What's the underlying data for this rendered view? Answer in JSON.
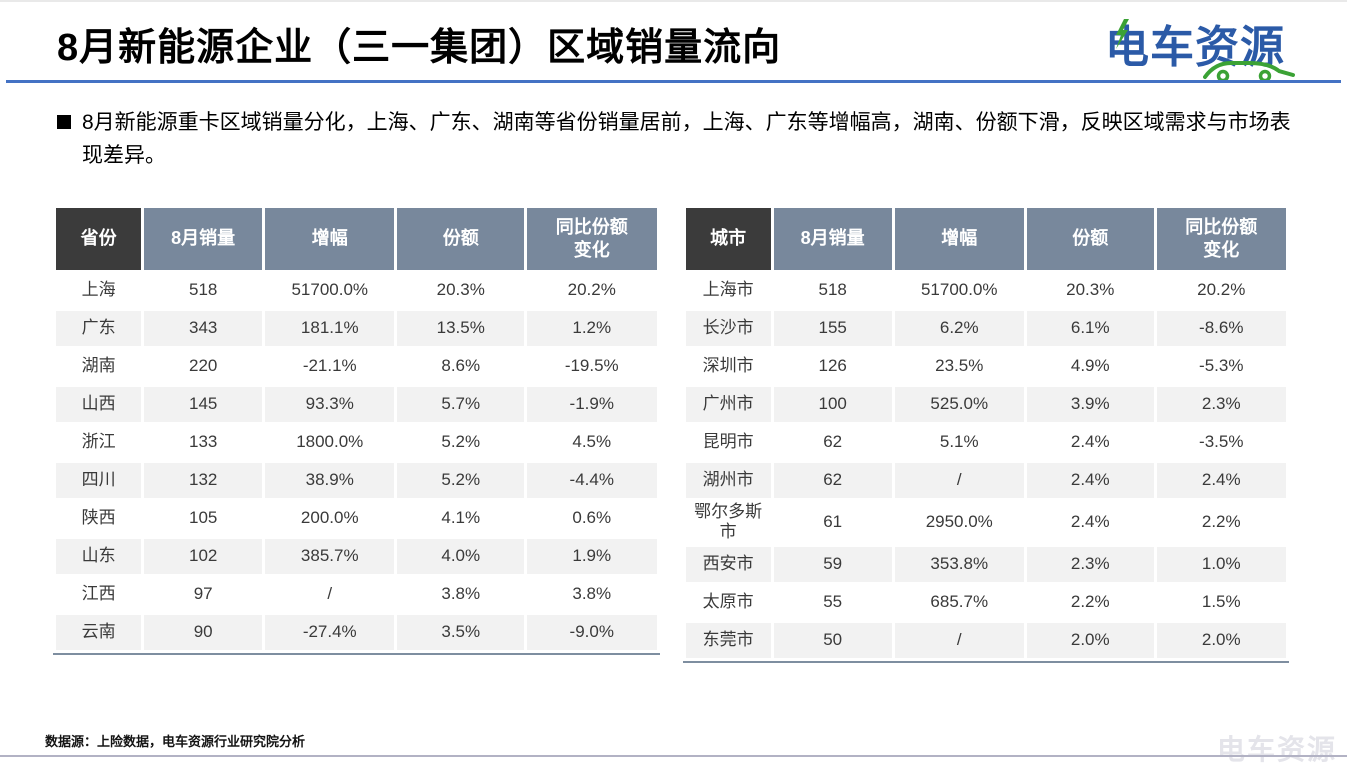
{
  "header": {
    "title": "8月新能源企业（三一集团）区域销量流向",
    "logo_text": "电车资源"
  },
  "summary": {
    "text": "8月新能源重卡区域销量分化，上海、广东、湖南等省份销量居前，上海、广东等增幅高，湖南、份额下滑，反映区域需求与市场表现差异。"
  },
  "tables": [
    {
      "name": "province-sales",
      "columns": [
        "省份",
        "8月销量",
        "增幅",
        "份额",
        "同比份额变化"
      ],
      "rows": [
        [
          "上海",
          "518",
          "51700.0%",
          "20.3%",
          "20.2%"
        ],
        [
          "广东",
          "343",
          "181.1%",
          "13.5%",
          "1.2%"
        ],
        [
          "湖南",
          "220",
          "-21.1%",
          "8.6%",
          "-19.5%"
        ],
        [
          "山西",
          "145",
          "93.3%",
          "5.7%",
          "-1.9%"
        ],
        [
          "浙江",
          "133",
          "1800.0%",
          "5.2%",
          "4.5%"
        ],
        [
          "四川",
          "132",
          "38.9%",
          "5.2%",
          "-4.4%"
        ],
        [
          "陕西",
          "105",
          "200.0%",
          "4.1%",
          "0.6%"
        ],
        [
          "山东",
          "102",
          "385.7%",
          "4.0%",
          "1.9%"
        ],
        [
          "江西",
          "97",
          "/",
          "3.8%",
          "3.8%"
        ],
        [
          "云南",
          "90",
          "-27.4%",
          "3.5%",
          "-9.0%"
        ]
      ]
    },
    {
      "name": "city-sales",
      "columns": [
        "城市",
        "8月销量",
        "增幅",
        "份额",
        "同比份额变化"
      ],
      "rows": [
        [
          "上海市",
          "518",
          "51700.0%",
          "20.3%",
          "20.2%"
        ],
        [
          "长沙市",
          "155",
          "6.2%",
          "6.1%",
          "-8.6%"
        ],
        [
          "深圳市",
          "126",
          "23.5%",
          "4.9%",
          "-5.3%"
        ],
        [
          "广州市",
          "100",
          "525.0%",
          "3.9%",
          "2.3%"
        ],
        [
          "昆明市",
          "62",
          "5.1%",
          "2.4%",
          "-3.5%"
        ],
        [
          "湖州市",
          "62",
          "/",
          "2.4%",
          "2.4%"
        ],
        [
          "鄂尔多斯市",
          "61",
          "2950.0%",
          "2.4%",
          "2.2%"
        ],
        [
          "西安市",
          "59",
          "353.8%",
          "2.3%",
          "1.0%"
        ],
        [
          "太原市",
          "55",
          "685.7%",
          "2.2%",
          "1.5%"
        ],
        [
          "东莞市",
          "50",
          "/",
          "2.0%",
          "2.0%"
        ]
      ]
    }
  ],
  "footer": {
    "source": "数据源：上险数据，电车资源行业研究院分析",
    "watermark": "电车资源"
  },
  "colors": {
    "title_rule_blue": "#4472C4",
    "logo_blue": "#2B5AA7",
    "logo_green": "#3BA235",
    "table_header_slate": "#78889C",
    "table_header_dark": "#3B3B3B",
    "row_alt_gray": "#F2F2F2",
    "table_bottom_rule": "#7E8EA0",
    "bottom_rule_gray": "#B2B2C4"
  }
}
